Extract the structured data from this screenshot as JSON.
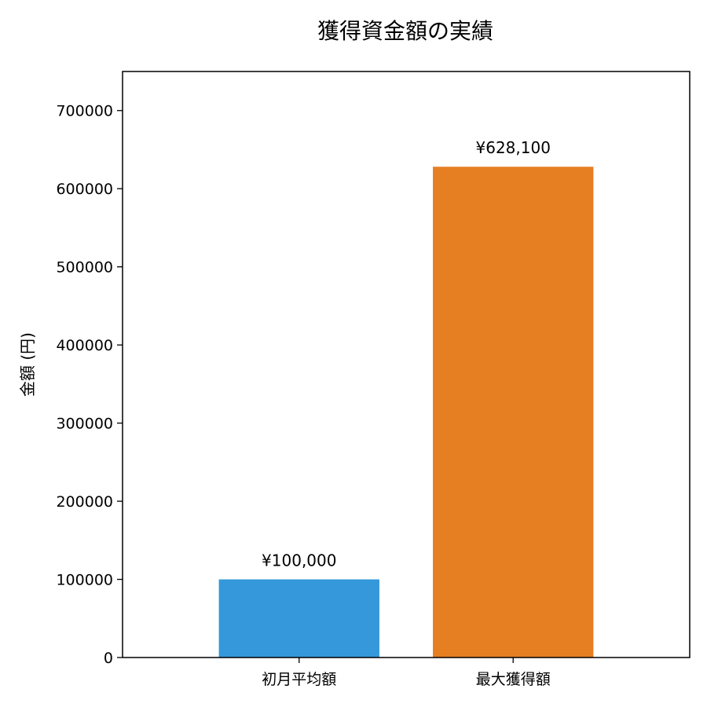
{
  "chart_data": {
    "type": "bar",
    "title": "獲得資金額の実績",
    "xlabel": "",
    "ylabel": "金額 (円)",
    "categories": [
      "初月平均額",
      "最大獲得額"
    ],
    "values": [
      100000,
      628100
    ],
    "data_labels": [
      "¥100,000",
      "¥628,100"
    ],
    "colors": [
      "#3498db",
      "#e67e22"
    ],
    "ylim": [
      0,
      750000
    ],
    "yticks": [
      0,
      100000,
      200000,
      300000,
      400000,
      500000,
      600000,
      700000
    ],
    "ytick_labels": [
      "0",
      "100000",
      "200000",
      "300000",
      "400000",
      "500000",
      "600000",
      "700000"
    ],
    "grid": false,
    "legend": "none"
  }
}
